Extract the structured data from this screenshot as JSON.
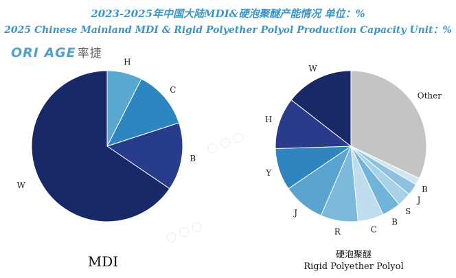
{
  "title": {
    "zh": "2023-2025年中国大陆MDI&硬泡聚醚产能情况  单位：%",
    "en": "2025 Chinese Mainland MDI & Rigid Polyether Polyol Production Capacity Unit：%"
  },
  "logo": {
    "mark": "ORI AGE",
    "cn": "率捷"
  },
  "chart_data": [
    {
      "type": "pie",
      "title": "MDI",
      "start_angle_deg": 0,
      "direction": "clockwise",
      "categories": [
        "H",
        "C",
        "B",
        "W"
      ],
      "values": [
        7.5,
        12.5,
        14.5,
        65.5
      ],
      "colors": [
        "#5aa8d0",
        "#2e86c1",
        "#283c8c",
        "#172966"
      ]
    },
    {
      "type": "pie",
      "title": "硬泡聚醚",
      "subtitle": "Rigid Polyether Polyol",
      "start_angle_deg": 0,
      "direction": "clockwise",
      "categories": [
        "Other",
        "B",
        "J",
        "S",
        "B",
        "C",
        "R",
        "J",
        "Y",
        "H",
        "W"
      ],
      "values": [
        32,
        1.5,
        2.5,
        3,
        4,
        5.5,
        8,
        9,
        9,
        11,
        14.5
      ],
      "colors": [
        "#c4c4c4",
        "#d2e6f1",
        "#8cc2e0",
        "#a9d2e8",
        "#70b3db",
        "#bfdded",
        "#7db9dc",
        "#5aa5cf",
        "#2f86bf",
        "#2a3b8c",
        "#172966"
      ]
    }
  ]
}
